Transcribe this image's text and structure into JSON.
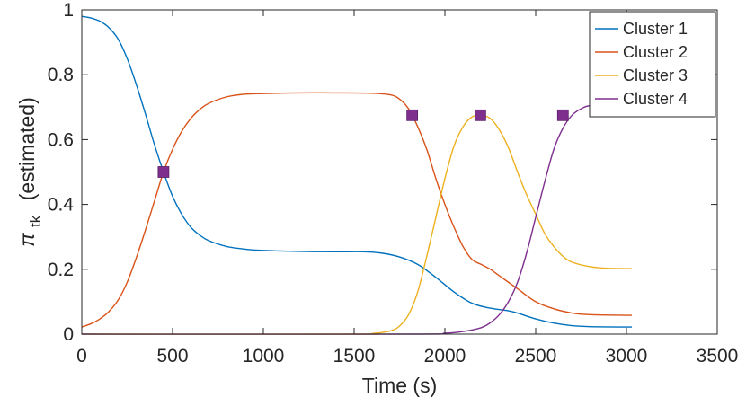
{
  "chart_data": {
    "type": "line",
    "xlabel": "Time (s)",
    "ylabel_symbol": "π",
    "ylabel_subscript": "tk",
    "ylabel_suffix": "(estimated)",
    "xlim": [
      0,
      3500
    ],
    "ylim": [
      0,
      1
    ],
    "xticks": [
      0,
      500,
      1000,
      1500,
      2000,
      2500,
      3000,
      3500
    ],
    "xtick_labels": [
      "0",
      "500",
      "1000",
      "1500",
      "2000",
      "2500",
      "3000",
      "3500"
    ],
    "yticks": [
      0,
      0.2,
      0.4,
      0.6,
      0.8,
      1
    ],
    "ytick_labels": [
      "0",
      "0.2",
      "0.4",
      "0.6",
      "0.8",
      "1"
    ],
    "grid": false,
    "legend_position": "top-right",
    "series": [
      {
        "name": "Cluster 1",
        "color": "#0072BD",
        "points": [
          [
            0,
            0.98
          ],
          [
            50,
            0.975
          ],
          [
            100,
            0.965
          ],
          [
            150,
            0.945
          ],
          [
            200,
            0.91
          ],
          [
            250,
            0.85
          ],
          [
            300,
            0.77
          ],
          [
            350,
            0.68
          ],
          [
            400,
            0.585
          ],
          [
            450,
            0.5
          ],
          [
            500,
            0.425
          ],
          [
            550,
            0.37
          ],
          [
            600,
            0.33
          ],
          [
            650,
            0.305
          ],
          [
            700,
            0.288
          ],
          [
            800,
            0.27
          ],
          [
            900,
            0.262
          ],
          [
            1000,
            0.258
          ],
          [
            1200,
            0.255
          ],
          [
            1400,
            0.254
          ],
          [
            1550,
            0.254
          ],
          [
            1650,
            0.25
          ],
          [
            1750,
            0.238
          ],
          [
            1850,
            0.215
          ],
          [
            1950,
            0.175
          ],
          [
            2050,
            0.13
          ],
          [
            2150,
            0.095
          ],
          [
            2250,
            0.08
          ],
          [
            2350,
            0.072
          ],
          [
            2400,
            0.065
          ],
          [
            2500,
            0.047
          ],
          [
            2600,
            0.034
          ],
          [
            2700,
            0.026
          ],
          [
            2800,
            0.023
          ],
          [
            3000,
            0.022
          ],
          [
            3030,
            0.022
          ]
        ]
      },
      {
        "name": "Cluster 2",
        "color": "#D95319",
        "points": [
          [
            0,
            0.022
          ],
          [
            50,
            0.032
          ],
          [
            100,
            0.047
          ],
          [
            150,
            0.07
          ],
          [
            200,
            0.105
          ],
          [
            250,
            0.16
          ],
          [
            300,
            0.235
          ],
          [
            350,
            0.32
          ],
          [
            400,
            0.41
          ],
          [
            450,
            0.5
          ],
          [
            500,
            0.57
          ],
          [
            550,
            0.625
          ],
          [
            600,
            0.665
          ],
          [
            650,
            0.693
          ],
          [
            700,
            0.712
          ],
          [
            800,
            0.732
          ],
          [
            900,
            0.74
          ],
          [
            1000,
            0.742
          ],
          [
            1200,
            0.744
          ],
          [
            1400,
            0.744
          ],
          [
            1600,
            0.743
          ],
          [
            1700,
            0.738
          ],
          [
            1750,
            0.725
          ],
          [
            1800,
            0.695
          ],
          [
            1850,
            0.64
          ],
          [
            1900,
            0.57
          ],
          [
            1950,
            0.48
          ],
          [
            2000,
            0.4
          ],
          [
            2050,
            0.33
          ],
          [
            2100,
            0.27
          ],
          [
            2150,
            0.23
          ],
          [
            2200,
            0.215
          ],
          [
            2250,
            0.2
          ],
          [
            2300,
            0.18
          ],
          [
            2400,
            0.14
          ],
          [
            2500,
            0.1
          ],
          [
            2600,
            0.078
          ],
          [
            2700,
            0.065
          ],
          [
            2800,
            0.06
          ],
          [
            3000,
            0.058
          ],
          [
            3030,
            0.058
          ]
        ]
      },
      {
        "name": "Cluster 3",
        "color": "#EDB120",
        "points": [
          [
            0,
            0
          ],
          [
            1500,
            0
          ],
          [
            1600,
            0.002
          ],
          [
            1700,
            0.01
          ],
          [
            1750,
            0.025
          ],
          [
            1800,
            0.06
          ],
          [
            1850,
            0.13
          ],
          [
            1900,
            0.24
          ],
          [
            1950,
            0.36
          ],
          [
            2000,
            0.48
          ],
          [
            2050,
            0.58
          ],
          [
            2100,
            0.64
          ],
          [
            2150,
            0.67
          ],
          [
            2200,
            0.675
          ],
          [
            2250,
            0.665
          ],
          [
            2300,
            0.63
          ],
          [
            2350,
            0.575
          ],
          [
            2400,
            0.5
          ],
          [
            2450,
            0.43
          ],
          [
            2500,
            0.37
          ],
          [
            2550,
            0.31
          ],
          [
            2600,
            0.27
          ],
          [
            2650,
            0.24
          ],
          [
            2700,
            0.222
          ],
          [
            2800,
            0.208
          ],
          [
            2900,
            0.203
          ],
          [
            3030,
            0.202
          ]
        ]
      },
      {
        "name": "Cluster 4",
        "color": "#7E2F8E",
        "points": [
          [
            0,
            0
          ],
          [
            1800,
            0
          ],
          [
            2000,
            0.003
          ],
          [
            2100,
            0.008
          ],
          [
            2200,
            0.02
          ],
          [
            2250,
            0.035
          ],
          [
            2300,
            0.06
          ],
          [
            2350,
            0.1
          ],
          [
            2400,
            0.16
          ],
          [
            2450,
            0.25
          ],
          [
            2500,
            0.36
          ],
          [
            2550,
            0.47
          ],
          [
            2600,
            0.57
          ],
          [
            2650,
            0.635
          ],
          [
            2700,
            0.675
          ],
          [
            2750,
            0.695
          ],
          [
            2800,
            0.705
          ],
          [
            2900,
            0.71
          ],
          [
            3030,
            0.71
          ]
        ]
      }
    ],
    "markers": {
      "color": "#7E2F8E",
      "shape": "square",
      "points": [
        [
          450,
          0.5
        ],
        [
          1820,
          0.675
        ],
        [
          2195,
          0.675
        ],
        [
          2650,
          0.675
        ]
      ]
    }
  }
}
